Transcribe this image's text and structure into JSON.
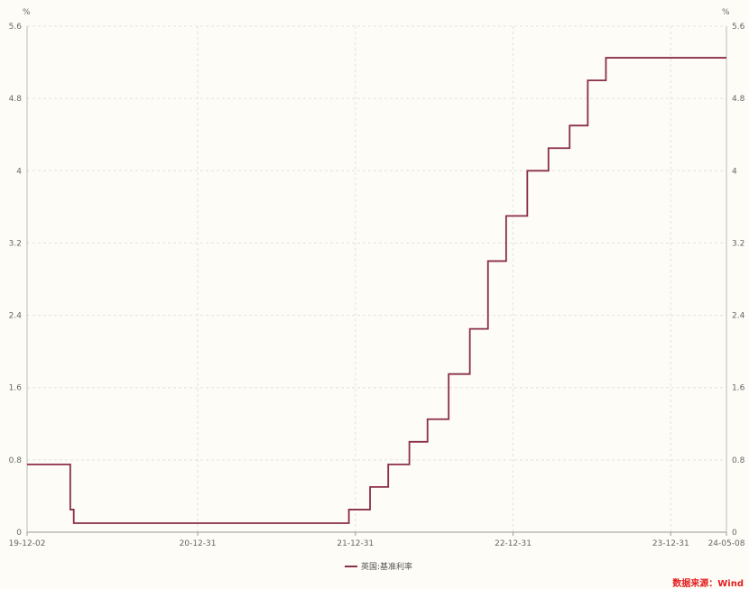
{
  "chart_data": {
    "type": "line",
    "step": true,
    "y_unit_left": "%",
    "y_unit_right": "%",
    "x_tick_labels": [
      "19-12-02",
      "20-12-31",
      "21-12-31",
      "22-12-31",
      "23-12-31",
      "24-05-08"
    ],
    "x_tick_dates": [
      "2019-12-02",
      "2020-12-31",
      "2021-12-31",
      "2022-12-31",
      "2023-12-31",
      "2024-05-08"
    ],
    "y_ticks": [
      0,
      0.8,
      1.6,
      2.4,
      3.2,
      4,
      4.8,
      5.6
    ],
    "y_tick_labels": [
      "0",
      "0.8",
      "1.6",
      "2.4",
      "3.2",
      "4",
      "4.8",
      "5.6"
    ],
    "xlim": [
      "2019-12-02",
      "2024-05-08"
    ],
    "ylim": [
      0,
      5.6
    ],
    "grid": true,
    "legend_position": "bottom",
    "series": [
      {
        "name": "英国:基准利率",
        "color": "#8b2f45",
        "points": [
          [
            "2019-12-02",
            0.75
          ],
          [
            "2020-03-11",
            0.25
          ],
          [
            "2020-03-19",
            0.1
          ],
          [
            "2021-12-16",
            0.25
          ],
          [
            "2022-02-03",
            0.5
          ],
          [
            "2022-03-17",
            0.75
          ],
          [
            "2022-05-05",
            1.0
          ],
          [
            "2022-06-16",
            1.25
          ],
          [
            "2022-08-04",
            1.75
          ],
          [
            "2022-09-22",
            2.25
          ],
          [
            "2022-11-03",
            3.0
          ],
          [
            "2022-12-15",
            3.5
          ],
          [
            "2023-02-02",
            4.0
          ],
          [
            "2023-03-23",
            4.25
          ],
          [
            "2023-05-11",
            4.5
          ],
          [
            "2023-06-22",
            5.0
          ],
          [
            "2023-08-03",
            5.25
          ],
          [
            "2024-05-08",
            5.25
          ]
        ]
      }
    ]
  },
  "legend": {
    "label": "英国:基准利率"
  },
  "source": {
    "text": "数据来源：Wind"
  }
}
